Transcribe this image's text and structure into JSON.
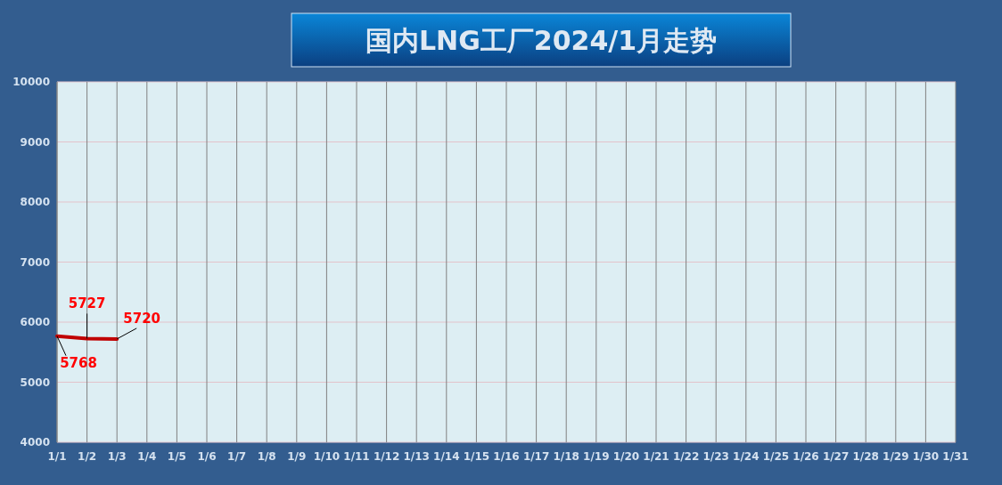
{
  "chart_data": {
    "type": "line",
    "title": "国内LNG工厂2024/1月走势",
    "categories": [
      "1/1",
      "1/2",
      "1/3",
      "1/4",
      "1/5",
      "1/6",
      "1/7",
      "1/8",
      "1/9",
      "1/10",
      "1/11",
      "1/12",
      "1/13",
      "1/14",
      "1/15",
      "1/16",
      "1/17",
      "1/18",
      "1/19",
      "1/20",
      "1/21",
      "1/22",
      "1/23",
      "1/24",
      "1/25",
      "1/26",
      "1/27",
      "1/28",
      "1/29",
      "1/30",
      "1/31"
    ],
    "series": [
      {
        "color": "#c00000",
        "values": [
          5768,
          5727,
          5720,
          null,
          null,
          null,
          null,
          null,
          null,
          null,
          null,
          null,
          null,
          null,
          null,
          null,
          null,
          null,
          null,
          null,
          null,
          null,
          null,
          null,
          null,
          null,
          null,
          null,
          null,
          null,
          null
        ]
      }
    ],
    "ylim": [
      4000,
      10000
    ],
    "yticks": [
      4000,
      5000,
      6000,
      7000,
      8000,
      9000,
      10000
    ],
    "grid": true,
    "data_labels": true,
    "marker": "none",
    "line_style": "solid"
  }
}
